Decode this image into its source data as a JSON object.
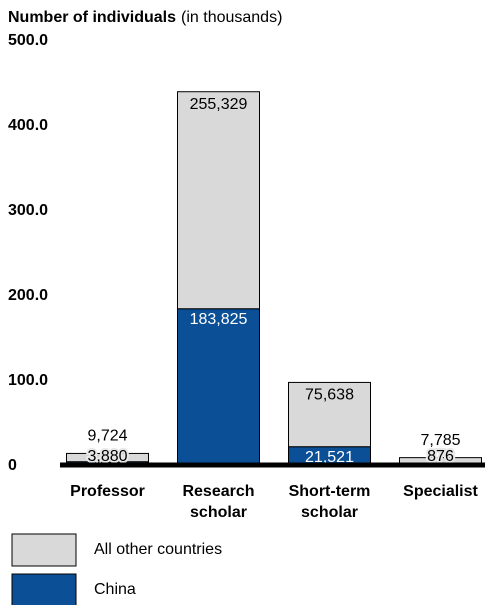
{
  "chart_data": {
    "type": "stacked_bar",
    "title": "Number of individuals",
    "subtitle": "(in thousands)",
    "categories": [
      "Professor",
      "Research scholar",
      "Short-term scholar",
      "Specialist"
    ],
    "series": [
      {
        "name": "China",
        "color": "#0b4f96",
        "values": [
          3.88,
          183.825,
          21.521,
          0.876
        ],
        "value_labels": [
          "3,880",
          "183,825",
          "21,521",
          "876"
        ]
      },
      {
        "name": "All other countries",
        "color": "#d9d9d9",
        "values": [
          9.724,
          255.329,
          75.638,
          7.785
        ],
        "value_labels": [
          "9,724",
          "255,329",
          "75,638",
          "7,785"
        ]
      }
    ],
    "ylim": [
      0,
      500
    ],
    "yticks": [
      0,
      {
        "value": 100,
        "label": "100.0"
      },
      {
        "value": 200,
        "label": "200.0"
      },
      {
        "value": 300,
        "label": "300.0"
      },
      {
        "value": 400,
        "label": "400.0"
      },
      {
        "value": 500,
        "label": "500.0"
      }
    ],
    "grid": false
  }
}
